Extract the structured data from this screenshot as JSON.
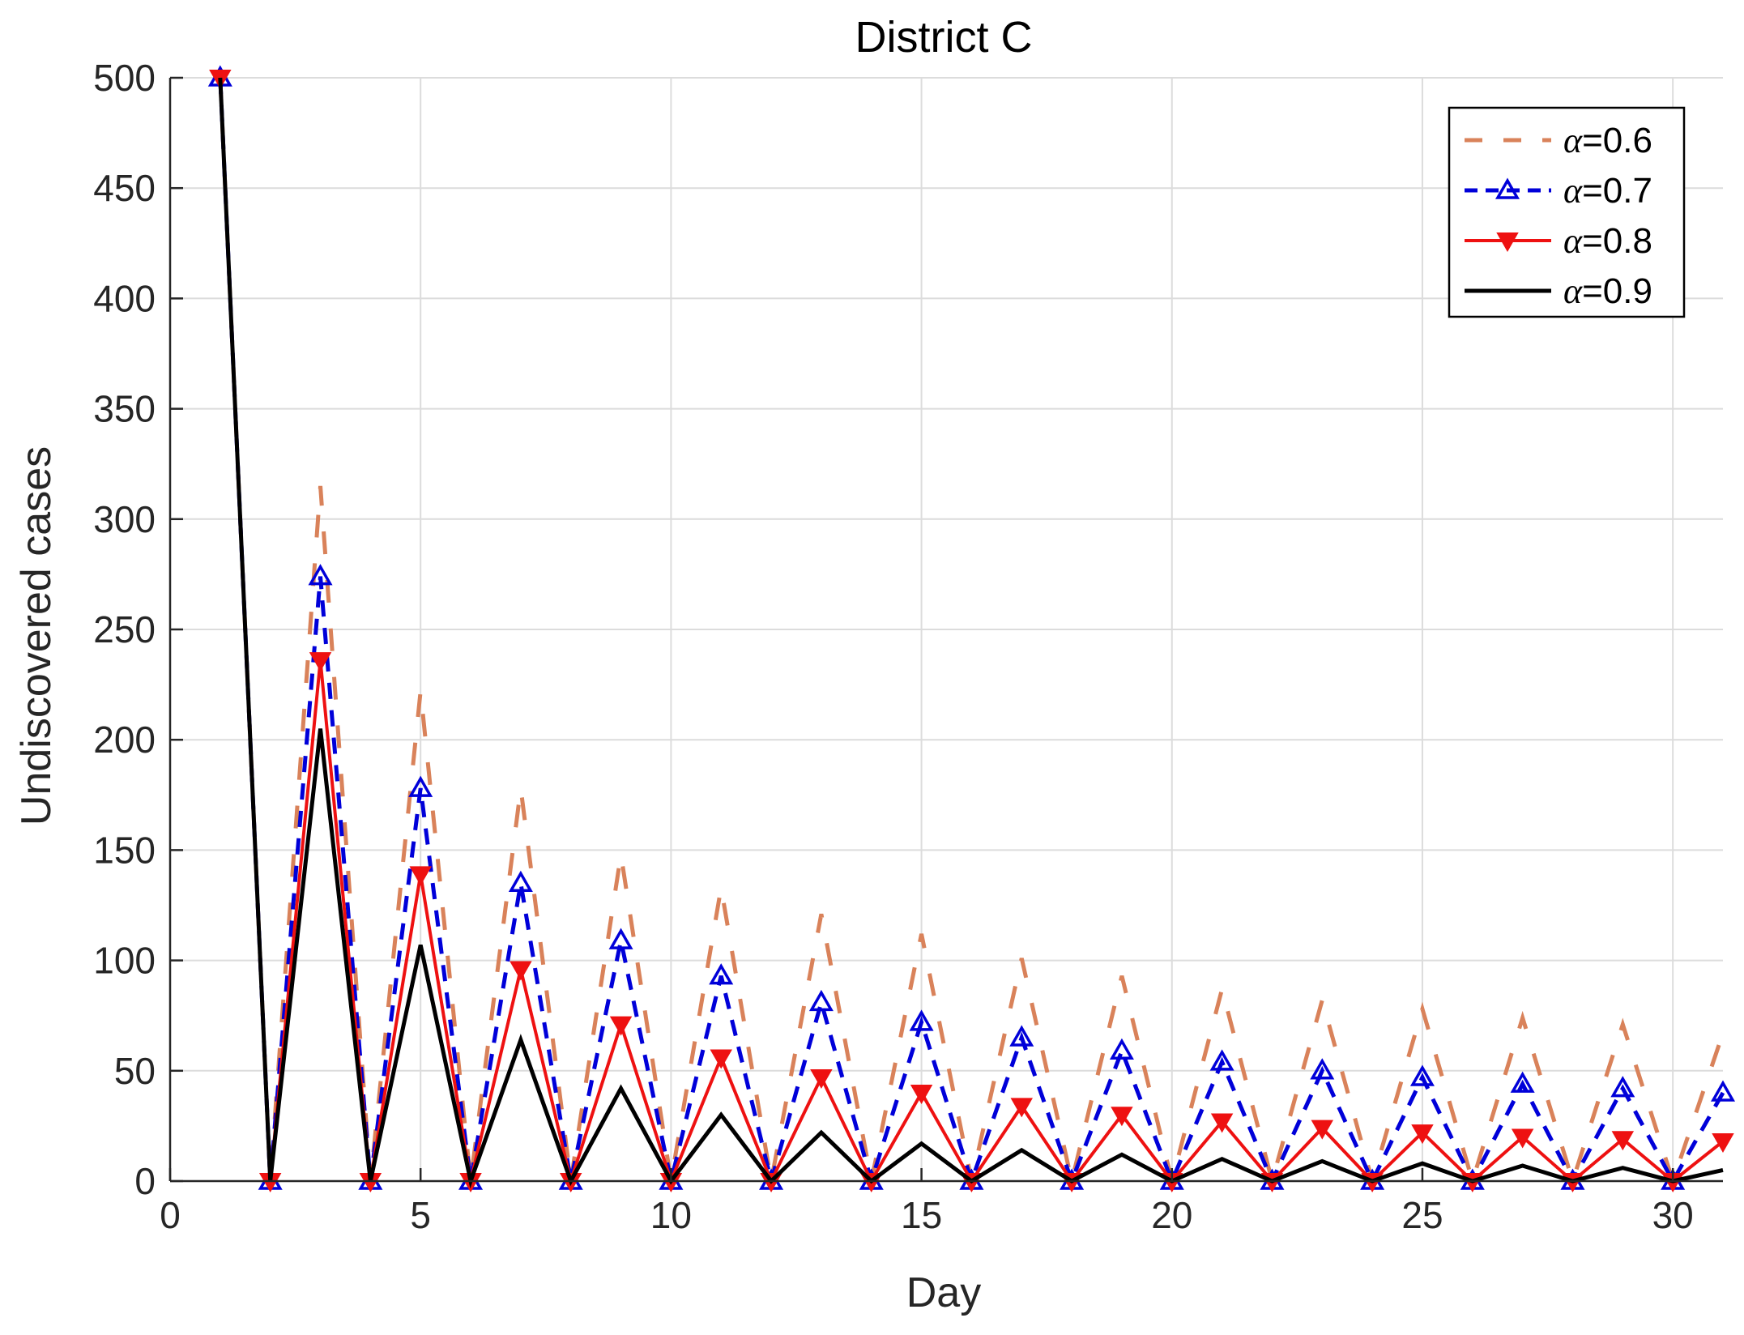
{
  "chart_data": {
    "type": "line",
    "title": "District C",
    "xlabel": "Day",
    "ylabel": "Undiscovered cases",
    "xlim": [
      0,
      31
    ],
    "ylim": [
      0,
      500
    ],
    "xticks": [
      0,
      5,
      10,
      15,
      20,
      25,
      30
    ],
    "yticks": [
      0,
      50,
      100,
      150,
      200,
      250,
      300,
      350,
      400,
      450,
      500
    ],
    "grid": true,
    "legend_position": "top-right",
    "x": [
      1,
      2,
      3,
      4,
      5,
      6,
      7,
      8,
      9,
      10,
      11,
      12,
      13,
      14,
      15,
      16,
      17,
      18,
      19,
      20,
      21,
      22,
      23,
      24,
      25,
      26,
      27,
      28,
      29,
      30,
      31
    ],
    "series": [
      {
        "name": "α=0.6",
        "alpha_symbol": "α",
        "alpha_value": "=0.6",
        "color": "#D9825A",
        "style": "dashed",
        "marker": "none",
        "values": [
          500,
          0,
          315,
          0,
          222,
          0,
          178,
          0,
          148,
          0,
          133,
          0,
          121,
          0,
          112,
          0,
          101,
          0,
          93,
          0,
          87,
          0,
          82,
          0,
          78,
          0,
          74,
          0,
          71,
          0,
          67
        ]
      },
      {
        "name": "α=0.7",
        "alpha_symbol": "α",
        "alpha_value": "=0.7",
        "color": "#0000D9",
        "style": "dashed",
        "marker": "triangle-up",
        "values": [
          500,
          0,
          274,
          0,
          178,
          0,
          135,
          0,
          109,
          0,
          93,
          0,
          81,
          0,
          72,
          0,
          65,
          0,
          59,
          0,
          54,
          0,
          50,
          0,
          47,
          0,
          44,
          0,
          42,
          0,
          40
        ]
      },
      {
        "name": "α=0.8",
        "alpha_symbol": "α",
        "alpha_value": "=0.8",
        "color": "#EE1111",
        "style": "solid",
        "marker": "triangle-down",
        "values": [
          500,
          0,
          236,
          0,
          139,
          0,
          96,
          0,
          71,
          0,
          56,
          0,
          47,
          0,
          40,
          0,
          34,
          0,
          30,
          0,
          27,
          0,
          24,
          0,
          22,
          0,
          20,
          0,
          19,
          0,
          18
        ]
      },
      {
        "name": "α=0.9",
        "alpha_symbol": "α",
        "alpha_value": "=0.9",
        "color": "#000000",
        "style": "solid",
        "marker": "none",
        "values": [
          500,
          0,
          205,
          0,
          107,
          0,
          64,
          0,
          42,
          0,
          30,
          0,
          22,
          0,
          17,
          0,
          14,
          0,
          12,
          0,
          10,
          0,
          9,
          0,
          8,
          0,
          7,
          0,
          6,
          0,
          5
        ]
      }
    ]
  }
}
